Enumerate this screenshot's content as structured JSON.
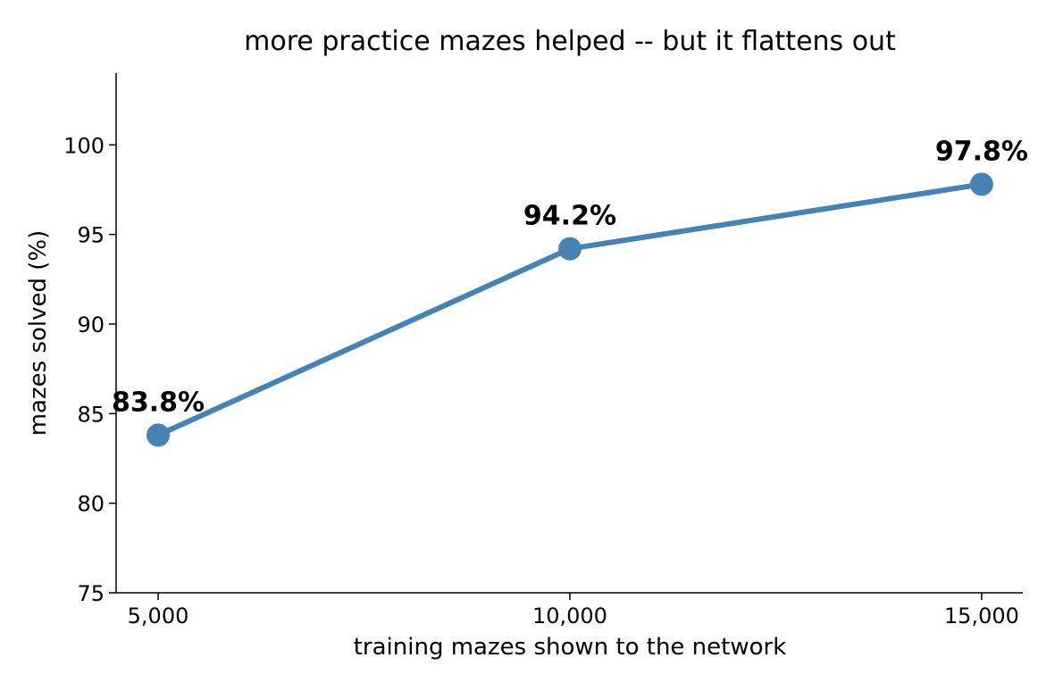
{
  "chart_data": {
    "type": "line",
    "title": "more practice mazes helped -- but it flattens out",
    "xlabel": "training mazes shown to the network",
    "ylabel": "mazes solved (%)",
    "x": [
      5000,
      10000,
      15000
    ],
    "x_tick_labels": [
      "5,000",
      "10,000",
      "15,000"
    ],
    "series": [
      {
        "values": [
          83.8,
          94.2,
          97.8
        ],
        "data_labels": [
          "83.8%",
          "94.2%",
          "97.8%"
        ],
        "color": "#4682b4",
        "marker": "circle"
      }
    ],
    "xlim": [
      4490,
      15500
    ],
    "ylim": [
      75,
      104
    ],
    "y_ticks": [
      75,
      80,
      85,
      90,
      95,
      100
    ],
    "y_tick_labels": [
      "75",
      "80",
      "85",
      "90",
      "95",
      "100"
    ],
    "grid": false,
    "legend": "none",
    "spines": "left-bottom"
  }
}
